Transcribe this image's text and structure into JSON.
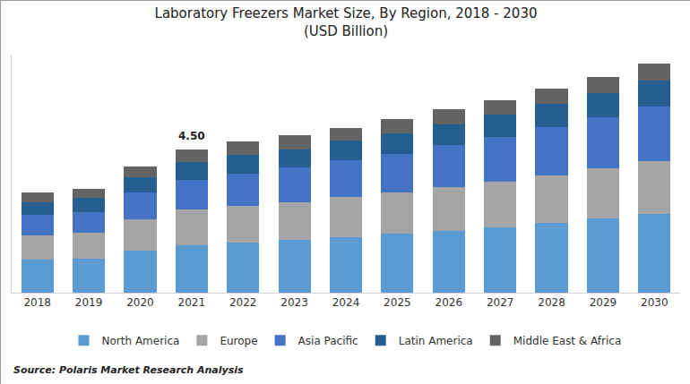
{
  "chart_data": {
    "type": "bar",
    "title": "Laboratory Freezers Market Size, By Region, 2018 - 2030",
    "subtitle": "(USD Billion)",
    "categories": [
      "2018",
      "2019",
      "2020",
      "2021",
      "2022",
      "2023",
      "2024",
      "2025",
      "2026",
      "2027",
      "2028",
      "2029",
      "2030"
    ],
    "series": [
      {
        "name": "North America",
        "color": "#5b9bd5",
        "values": [
          1.03,
          1.06,
          1.32,
          1.49,
          1.58,
          1.66,
          1.75,
          1.86,
          1.95,
          2.06,
          2.21,
          2.35,
          2.49
        ]
      },
      {
        "name": "Europe",
        "color": "#a5a5a5",
        "values": [
          0.77,
          0.83,
          1.0,
          1.12,
          1.15,
          1.2,
          1.26,
          1.29,
          1.38,
          1.43,
          1.49,
          1.58,
          1.66
        ]
      },
      {
        "name": "Asia Pacific",
        "color": "#4472c4",
        "values": [
          0.66,
          0.66,
          0.83,
          0.95,
          1.03,
          1.09,
          1.15,
          1.23,
          1.32,
          1.43,
          1.52,
          1.6,
          1.72
        ]
      },
      {
        "name": "Latin America",
        "color": "#255e91",
        "values": [
          0.4,
          0.43,
          0.49,
          0.57,
          0.57,
          0.57,
          0.63,
          0.63,
          0.66,
          0.69,
          0.72,
          0.77,
          0.8
        ]
      },
      {
        "name": "Middle East & Africa",
        "color": "#636363",
        "values": [
          0.29,
          0.29,
          0.34,
          0.37,
          0.43,
          0.43,
          0.4,
          0.46,
          0.46,
          0.46,
          0.49,
          0.49,
          0.54
        ]
      }
    ],
    "stacked": true,
    "ylim": [
      0,
      7.5
    ],
    "tick_labels": "x",
    "grid": false,
    "legend": "bottom",
    "annotations": [
      {
        "text": "4.50",
        "x": "2021",
        "y": 4.5
      }
    ],
    "source": "Source: Polaris Market Research Analysis"
  }
}
